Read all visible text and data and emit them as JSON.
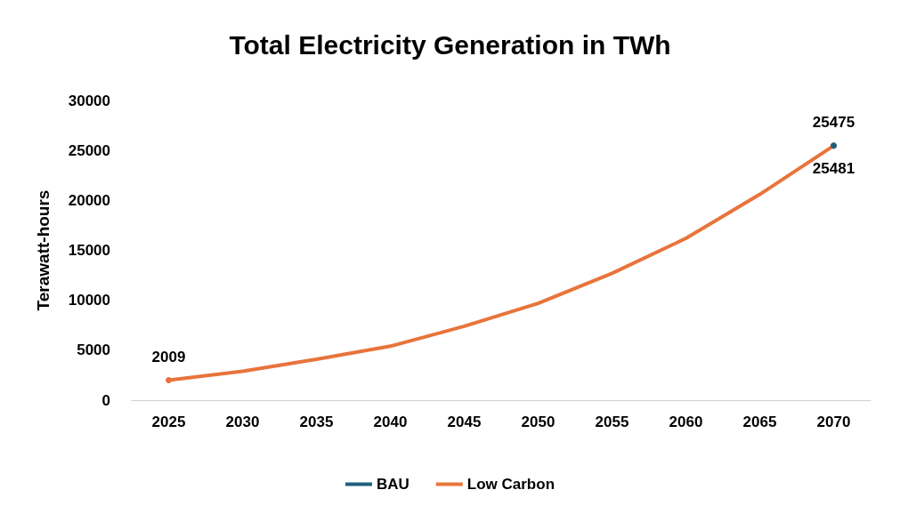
{
  "chart_data": {
    "type": "line",
    "title": "Total Electricity Generation in TWh",
    "ylabel": "Terawatt-hours",
    "categories": [
      "2025",
      "2030",
      "2035",
      "2040",
      "2045",
      "2050",
      "2055",
      "2060",
      "2065",
      "2070"
    ],
    "series": [
      {
        "name": "BAU",
        "color": "#1f5f7f",
        "values": [
          null,
          null,
          null,
          null,
          null,
          null,
          null,
          null,
          null,
          25481
        ],
        "value_labels": [
          null,
          null,
          null,
          null,
          null,
          null,
          null,
          null,
          null,
          "25481"
        ]
      },
      {
        "name": "Low Carbon",
        "color": "#e8743b",
        "values": [
          2009,
          2900,
          4100,
          5400,
          7400,
          9700,
          12700,
          16200,
          20600,
          25475
        ],
        "value_labels": [
          "2009",
          null,
          null,
          null,
          null,
          null,
          null,
          null,
          null,
          "25475"
        ]
      }
    ],
    "ylim": [
      0,
      30000
    ],
    "yticks": [
      0,
      5000,
      10000,
      15000,
      20000,
      25000,
      30000
    ],
    "grid": false,
    "legend": "bottom",
    "marker": "none",
    "line_style": "solid"
  }
}
